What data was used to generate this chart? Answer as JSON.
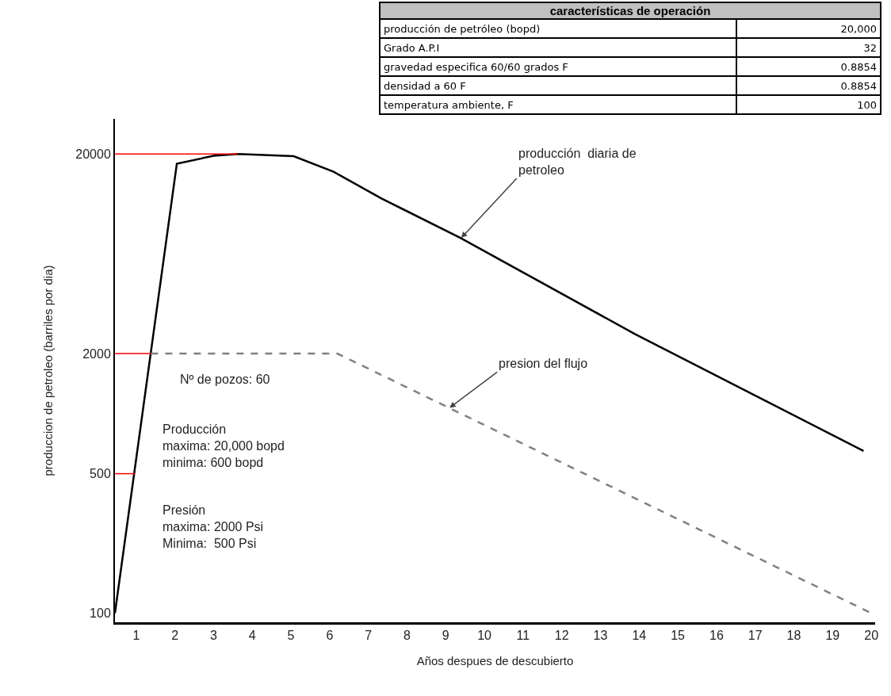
{
  "chart_data": {
    "type": "line",
    "xlabel": "Años despues de descubierto",
    "ylabel": "produccion de petroleo (barriles por dia)",
    "log": "y",
    "grid": false,
    "marker": "none",
    "xlim": [
      0.45,
      20.1
    ],
    "xticks": [
      1,
      2,
      3,
      4,
      5,
      6,
      7,
      8,
      9,
      10,
      11,
      12,
      13,
      14,
      15,
      16,
      17,
      18,
      19,
      20
    ],
    "ylim": [
      90,
      30000
    ],
    "yticks": [
      100,
      500,
      2000,
      20000
    ],
    "series": [
      {
        "color": "#000000",
        "line_style": "solid",
        "x": [
          0.45,
          2.05,
          3,
          3.63,
          5.07,
          6.1,
          7.33,
          9.38,
          13.9,
          19.8
        ],
        "values": [
          100,
          17900,
          19600,
          20000,
          19500,
          16300,
          12000,
          7600,
          2500,
          650
        ]
      },
      {
        "color": "#808080",
        "line_style": "dashed",
        "x": [
          1.38,
          6.2,
          20
        ],
        "values": [
          2000,
          2000,
          100
        ]
      },
      {
        "color": "#ff0000",
        "line_style": "solid",
        "x": [
          0.45,
          3.63
        ],
        "values": [
          20000,
          20000
        ]
      },
      {
        "color": "#ff0000",
        "line_style": "solid",
        "x": [
          0.45,
          1.38
        ],
        "values": [
          2000,
          2000
        ]
      },
      {
        "color": "#ff0000",
        "line_style": "solid",
        "x": [
          0.45,
          0.97
        ],
        "values": [
          500,
          500
        ]
      }
    ],
    "annotations": [
      "características de operación",
      "producción  de petróleo (bopd)",
      "20,000",
      "Grado A.P.I",
      "32",
      "gravedad especifica 60/60 grados F",
      "0.8854",
      "densidad a 60 F",
      "0.8854",
      "temperatura ambiente, F",
      "100",
      "Nº de pozos: 60",
      "Producción\nmaxima: 20,000 bopd\nminima: 600 bopd",
      "Presión\nmaxima: 2000 Psi\nMinima:  500 Psi",
      {
        "text": "producción  diaria de petroleo",
        "x": 9.4,
        "y": 7600
      },
      {
        "text": "presion del flujo",
        "x": 9.1,
        "y": 1070
      }
    ]
  }
}
